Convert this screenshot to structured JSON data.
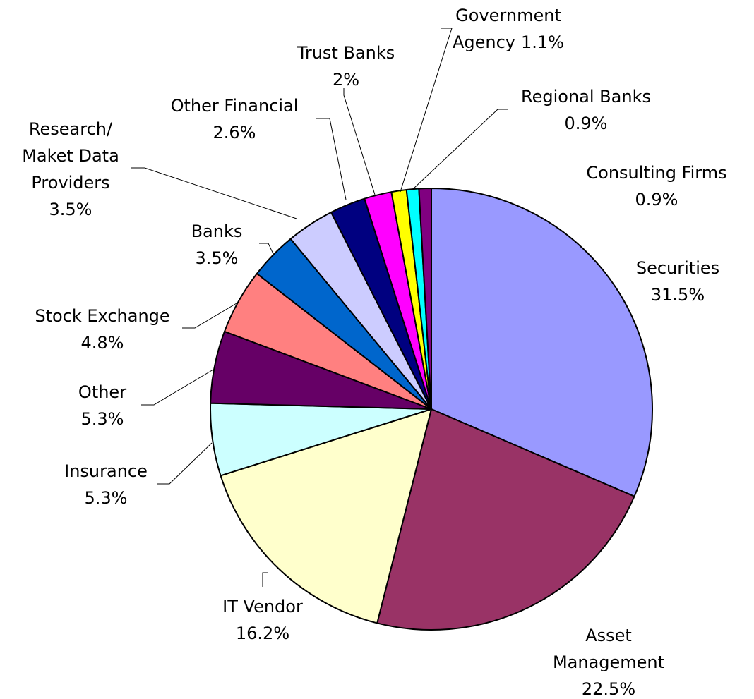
{
  "chart_data": {
    "type": "pie",
    "categories": [
      "Securities",
      "Asset Management",
      "IT Vendor",
      "Insurance",
      "Other",
      "Stock Exchange",
      "Banks",
      "Research/ Maket Data Providers",
      "Other Financial",
      "Trust Banks",
      "Government Agency",
      "Regional Banks",
      "Consulting Firms"
    ],
    "values": [
      31.5,
      22.5,
      16.2,
      5.3,
      5.3,
      4.8,
      3.5,
      3.5,
      2.6,
      2,
      1.1,
      0.9,
      0.9
    ],
    "value_labels": [
      "31.5%",
      "22.5%",
      "16.2%",
      "5.3%",
      "5.3%",
      "4.8%",
      "3.5%",
      "3.5%",
      "2.6%",
      "2%",
      "1.1%",
      "0.9%",
      "0.9%"
    ],
    "colors": [
      "#9999ff",
      "#993366",
      "#ffffcc",
      "#ccffff",
      "#660066",
      "#ff8080",
      "#0066cc",
      "#ccccff",
      "#000080",
      "#ff00ff",
      "#ffff00",
      "#00ffff",
      "#800080"
    ]
  }
}
